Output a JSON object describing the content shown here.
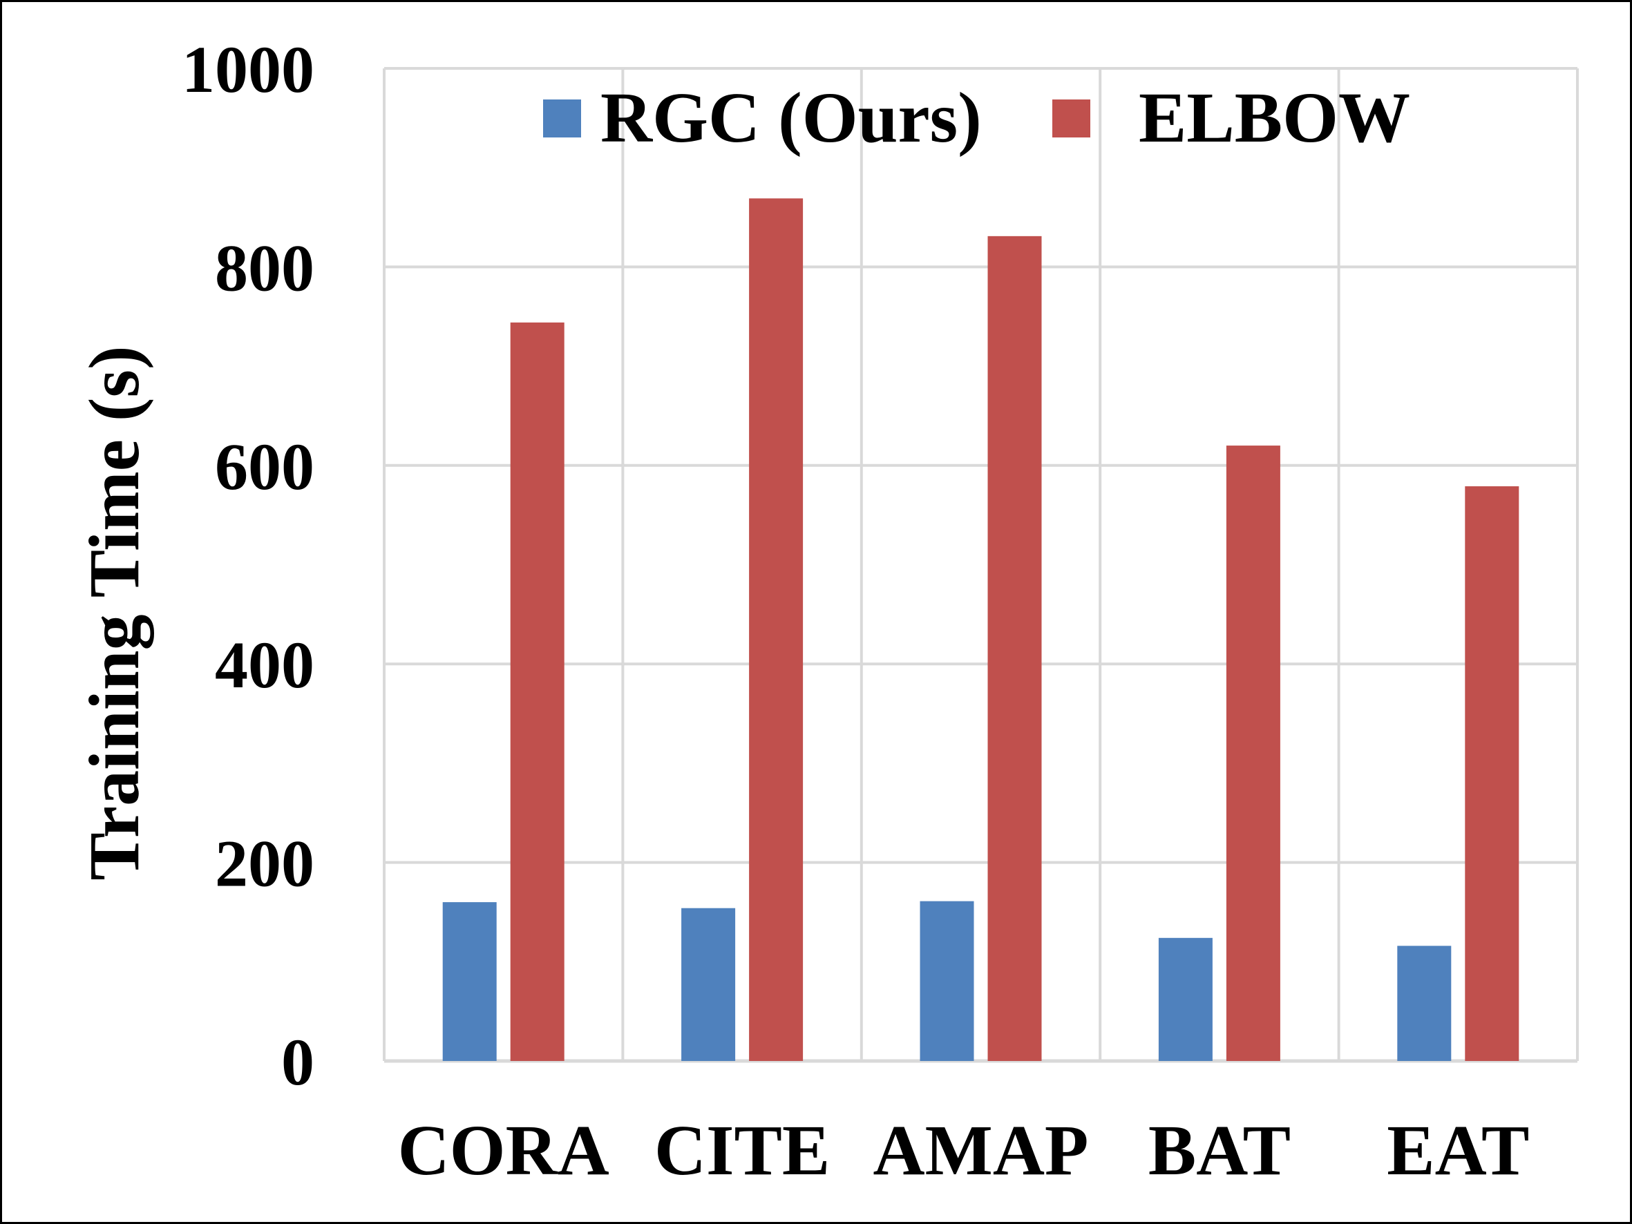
{
  "chart_data": {
    "type": "bar",
    "title": "",
    "xlabel": "",
    "ylabel": "Training Time (s)",
    "ylim": [
      0,
      1000
    ],
    "yticks": [
      0,
      200,
      400,
      600,
      800,
      1000
    ],
    "grid": true,
    "legend_position": "top",
    "categories": [
      "CORA",
      "CITE",
      "AMAP",
      "BAT",
      "EAT"
    ],
    "series": [
      {
        "name": "RGC (Ours)",
        "color": "#4F81BD",
        "values": [
          160,
          154,
          161,
          124,
          116
        ]
      },
      {
        "name": "ELBOW",
        "color": "#C0504D",
        "values": [
          744,
          869,
          831,
          620,
          579
        ]
      }
    ]
  }
}
